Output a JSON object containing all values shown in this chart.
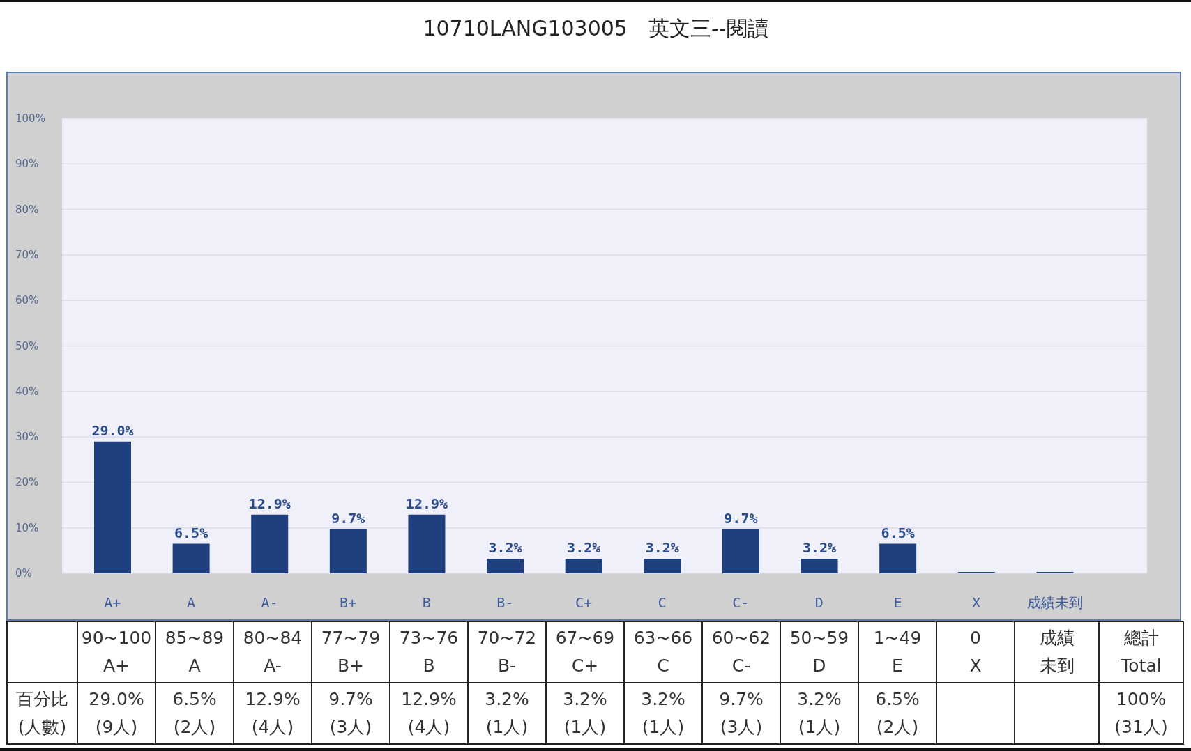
{
  "chart_data": {
    "type": "bar",
    "title": "10710LANG103005　英文三--閱讀",
    "categories": [
      "A+",
      "A",
      "A-",
      "B+",
      "B",
      "B-",
      "C+",
      "C",
      "C-",
      "D",
      "E",
      "X",
      "成績未到"
    ],
    "values": [
      29.0,
      6.5,
      12.9,
      9.7,
      12.9,
      3.2,
      3.2,
      3.2,
      9.7,
      3.2,
      6.5,
      0,
      0
    ],
    "value_labels": [
      "29.0%",
      "6.5%",
      "12.9%",
      "9.7%",
      "12.9%",
      "3.2%",
      "3.2%",
      "3.2%",
      "9.7%",
      "3.2%",
      "6.5%",
      null,
      null
    ],
    "color": "#1f3f7f",
    "ylim": [
      0,
      100
    ],
    "yticks": [
      {
        "value": 0,
        "label": "0%"
      },
      {
        "value": 10,
        "label": "10%"
      },
      {
        "value": 20,
        "label": "20%"
      },
      {
        "value": 30,
        "label": "30%"
      },
      {
        "value": 40,
        "label": "40%"
      },
      {
        "value": 50,
        "label": "50%"
      },
      {
        "value": 60,
        "label": "60%"
      },
      {
        "value": 70,
        "label": "70%"
      },
      {
        "value": 80,
        "label": "80%"
      },
      {
        "value": 90,
        "label": "90%"
      },
      {
        "value": 100,
        "label": "100%"
      }
    ],
    "grid": "y",
    "annotations": [
      "90~100",
      "A+",
      "85~89",
      "A",
      "80~84",
      "A-",
      "77~79",
      "B+",
      "73~76",
      "B",
      "70~72",
      "B-",
      "67~69",
      "C+",
      "63~66",
      "C",
      "60~62",
      "C-",
      "50~59",
      "D",
      "1~49",
      "E",
      "0",
      "X",
      "成績",
      "未到",
      "總計",
      "Total",
      "百分比",
      "(人數)",
      "29.0%",
      "(9人)",
      "6.5%",
      "(2人)",
      "12.9%",
      "(4人)",
      "9.7%",
      "(3人)",
      "12.9%",
      "(4人)",
      "3.2%",
      "(1人)",
      "3.2%",
      "(1人)",
      "3.2%",
      "(1人)",
      "9.7%",
      "(3人)",
      "3.2%",
      "(1人)",
      "6.5%",
      "(2人)",
      "100%",
      "(31人)"
    ]
  }
}
